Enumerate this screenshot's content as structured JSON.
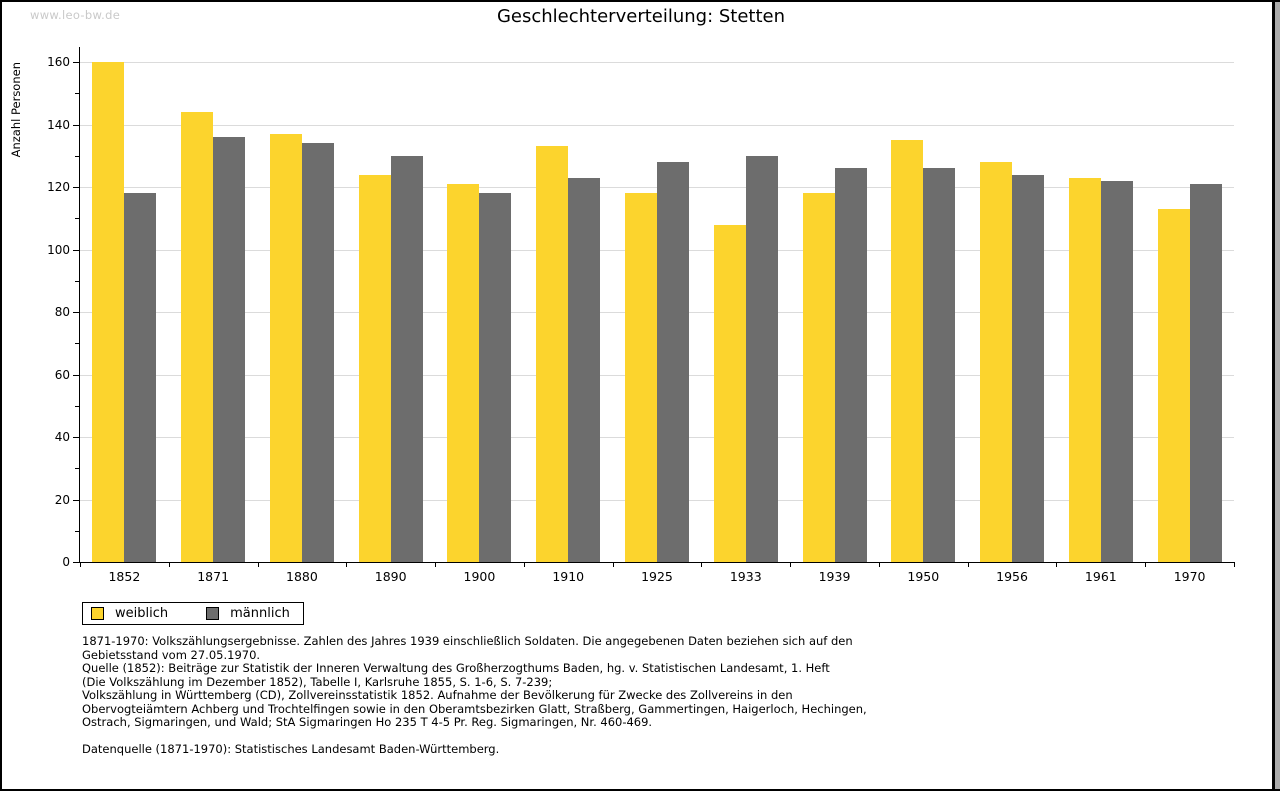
{
  "page": {
    "watermark": "www.leo-bw.de",
    "title": "Geschlechterverteilung: Stetten"
  },
  "colors": {
    "weiblich": "#FCD42D",
    "maennlich": "#6D6D6D",
    "gridline": "#DBDBDB",
    "watermark_text": "#C9C9C9",
    "axis": "#000000"
  },
  "chart_data": {
    "type": "bar",
    "title": "Geschlechterverteilung: Stetten",
    "xlabel": "",
    "ylabel": "Anzahl Personen",
    "ylim": [
      0,
      160
    ],
    "ytick_step": 20,
    "yminor_step": 10,
    "grid": true,
    "legend_position": "bottom-left",
    "categories": [
      "1852",
      "1871",
      "1880",
      "1890",
      "1900",
      "1910",
      "1925",
      "1933",
      "1939",
      "1950",
      "1956",
      "1961",
      "1970"
    ],
    "series": [
      {
        "name": "weiblich",
        "color": "#FCD42D",
        "values": [
          160,
          144,
          137,
          124,
          121,
          133,
          118,
          108,
          118,
          135,
          128,
          123,
          113
        ]
      },
      {
        "name": "männlich",
        "color": "#6D6D6D",
        "values": [
          118,
          136,
          134,
          130,
          118,
          123,
          128,
          130,
          126,
          126,
          124,
          122,
          121
        ]
      }
    ]
  },
  "footnotes": {
    "lines": [
      "1871-1970: Volkszählungsergebnisse. Zahlen des Jahres 1939 einschließlich Soldaten. Die angegebenen Daten beziehen sich auf den",
      "Gebietsstand vom 27.05.1970.",
      "Quelle (1852): Beiträge zur Statistik der Inneren Verwaltung des Großherzogthums Baden, hg. v. Statistischen Landesamt, 1. Heft",
      "(Die Volkszählung im Dezember 1852), Tabelle I, Karlsruhe 1855, S. 1-6, S. 7-239;",
      "Volkszählung in Württemberg (CD), Zollvereinsstatistik 1852. Aufnahme der Bevölkerung für Zwecke des Zollvereins in den",
      "Obervogteiämtern Achberg und Trochtelfingen sowie in den Oberamtsbezirken Glatt, Straßberg, Gammertingen, Haigerloch, Hechingen,",
      "Ostrach, Sigmaringen, und Wald; StA Sigmaringen Ho 235 T 4-5 Pr. Reg. Sigmaringen, Nr. 460-469."
    ],
    "source": "Datenquelle (1871-1970): Statistisches Landesamt Baden-Württemberg."
  }
}
